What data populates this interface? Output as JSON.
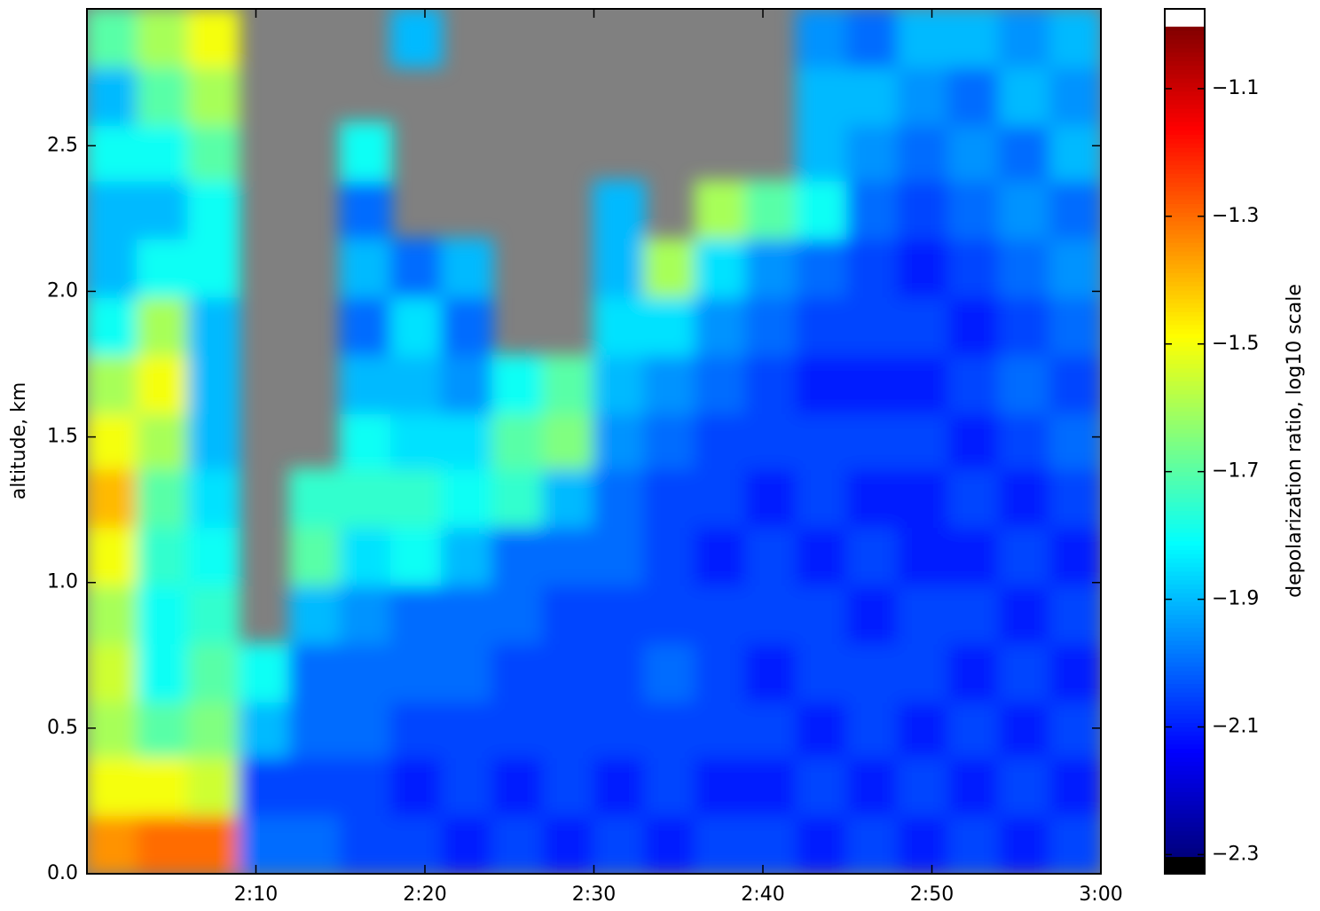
{
  "chart_data": {
    "type": "heatmap",
    "colormap": "jet",
    "ylabel": "altitude, km",
    "colorbar_label": "depolarization ratio, log10 scale",
    "x": [
      1.5,
      4.5,
      7.5,
      10.5,
      13.5,
      16.5,
      19.5,
      22.5,
      25.5,
      28.5,
      31.5,
      34.5,
      37.5,
      40.5,
      43.5,
      46.5,
      49.5,
      52.5,
      55.5,
      58.5
    ],
    "y": [
      0.1,
      0.3,
      0.5,
      0.69,
      0.89,
      1.09,
      1.29,
      1.49,
      1.68,
      1.88,
      2.08,
      2.28,
      2.48,
      2.67,
      2.87
    ],
    "values": [
      [
        -1.35,
        -1.5,
        -1.6,
        -1.55,
        -1.6,
        -1.5,
        -1.4,
        -1.5,
        -1.6,
        -1.8,
        -1.9,
        -1.9,
        -1.8,
        -1.9,
        -1.7
      ],
      [
        -1.3,
        -1.5,
        -1.7,
        -1.8,
        -1.8,
        -1.75,
        -1.7,
        -1.6,
        -1.5,
        -1.6,
        -1.8,
        -1.9,
        -1.8,
        -1.7,
        -1.6
      ],
      [
        -1.3,
        -1.55,
        -1.65,
        -1.7,
        -1.75,
        -1.8,
        -1.85,
        -1.9,
        -1.9,
        -1.9,
        -1.8,
        -1.8,
        -1.7,
        -1.6,
        -1.5
      ],
      [
        -2.0,
        -2.05,
        -1.9,
        -1.8,
        null,
        null,
        null,
        null,
        null,
        null,
        null,
        null,
        null,
        null,
        null
      ],
      [
        -2.0,
        -2.05,
        -2.0,
        -2.0,
        -1.9,
        -1.7,
        -1.75,
        null,
        null,
        null,
        null,
        null,
        null,
        null,
        null
      ],
      [
        -2.05,
        -2.05,
        -2.0,
        -2.0,
        -1.95,
        -1.85,
        -1.75,
        -1.8,
        -1.9,
        -2.0,
        -1.9,
        -2.0,
        -1.8,
        null,
        null
      ],
      [
        -2.05,
        -2.1,
        -2.05,
        -2.0,
        -2.0,
        -1.8,
        -1.75,
        -1.85,
        -1.9,
        -1.85,
        -2.0,
        null,
        null,
        null,
        -1.9
      ],
      [
        -2.1,
        -2.05,
        -2.05,
        -2.0,
        -2.0,
        -1.9,
        -1.8,
        -1.85,
        -1.95,
        -2.0,
        -1.9,
        null,
        null,
        null,
        null
      ],
      [
        -2.05,
        -2.1,
        -2.05,
        -2.05,
        -2.0,
        -2.0,
        -1.75,
        -1.7,
        -1.8,
        null,
        null,
        null,
        null,
        null,
        null
      ],
      [
        -2.1,
        -2.05,
        -2.05,
        -2.05,
        -2.05,
        -2.0,
        -1.9,
        -1.65,
        -1.7,
        null,
        null,
        null,
        null,
        null,
        null
      ],
      [
        -2.05,
        -2.1,
        -2.05,
        -2.05,
        -2.05,
        -2.0,
        -2.0,
        -1.95,
        -1.9,
        -1.85,
        -1.9,
        -1.9,
        null,
        null,
        null
      ],
      [
        -2.1,
        -2.05,
        -2.05,
        -2.0,
        -2.05,
        -2.05,
        -2.05,
        -2.0,
        -1.95,
        -1.85,
        -1.6,
        null,
        null,
        null,
        null
      ],
      [
        -2.05,
        -2.1,
        -2.05,
        -2.05,
        -2.05,
        -2.1,
        -2.05,
        -2.05,
        -2.0,
        -1.95,
        -1.85,
        -1.6,
        null,
        null,
        null
      ],
      [
        -2.05,
        -2.1,
        -2.05,
        -2.1,
        -2.05,
        -2.05,
        -2.1,
        -2.05,
        -2.05,
        -2.0,
        -1.95,
        -1.7,
        null,
        null,
        null
      ],
      [
        -2.1,
        -2.05,
        -2.1,
        -2.05,
        -2.05,
        -2.1,
        -2.05,
        -2.05,
        -2.1,
        -2.05,
        -2.0,
        -1.8,
        -1.9,
        -1.9,
        -1.95
      ],
      [
        -2.05,
        -2.1,
        -2.05,
        -2.05,
        -2.1,
        -2.05,
        -2.1,
        -2.05,
        -2.1,
        -2.05,
        -2.05,
        -2.0,
        -1.95,
        -1.9,
        -2.0
      ],
      [
        -2.1,
        -2.05,
        -2.1,
        -2.05,
        -2.05,
        -2.1,
        -2.1,
        -2.05,
        -2.1,
        -2.05,
        -2.1,
        -2.05,
        -2.0,
        -1.95,
        -1.9
      ],
      [
        -2.05,
        -2.1,
        -2.05,
        -2.1,
        -2.05,
        -2.1,
        -2.05,
        -2.1,
        -2.05,
        -2.1,
        -2.05,
        -2.0,
        -1.95,
        -2.0,
        -1.9
      ],
      [
        -2.1,
        -2.05,
        -2.1,
        -2.05,
        -2.1,
        -2.05,
        -2.1,
        -2.05,
        -2.0,
        -2.05,
        -2.0,
        -1.95,
        -2.0,
        -1.9,
        -1.95
      ],
      [
        -2.05,
        -2.1,
        -2.05,
        -2.1,
        -2.05,
        -2.1,
        -2.05,
        -2.0,
        -2.05,
        -2.0,
        -1.95,
        -2.0,
        -1.9,
        -1.95,
        -1.9
      ]
    ],
    "xlim": [
      0,
      60
    ],
    "xticks": [
      {
        "value": 10,
        "label": "2:10"
      },
      {
        "value": 20,
        "label": "2:20"
      },
      {
        "value": 30,
        "label": "2:30"
      },
      {
        "value": 40,
        "label": "2:40"
      },
      {
        "value": 50,
        "label": "2:50"
      },
      {
        "value": 60,
        "label": "3:00"
      }
    ],
    "ylim": [
      0,
      2.97
    ],
    "yticks": [
      {
        "value": 0,
        "label": "0.0"
      },
      0.5,
      {
        "value": 1,
        "label": "1.0"
      },
      1.5,
      {
        "value": 2,
        "label": "2.0"
      },
      2.5
    ],
    "clim": [
      -2.3,
      -1.0
    ],
    "colorbar_lim": [
      -2.33,
      -0.975
    ],
    "colorbar_ticks": [
      {
        "value": -1.1,
        "label": "−1.1"
      },
      {
        "value": -1.3,
        "label": "−1.3"
      },
      {
        "value": -1.5,
        "label": "−1.5"
      },
      {
        "value": -1.7,
        "label": "−1.7"
      },
      {
        "value": -1.9,
        "label": "−1.9"
      },
      {
        "value": -2.1,
        "label": "−2.1"
      },
      {
        "value": -2.3,
        "label": "−2.3"
      }
    ],
    "nan_color": "#808080",
    "under_color": "#000000",
    "over_color": "#ffffff"
  }
}
